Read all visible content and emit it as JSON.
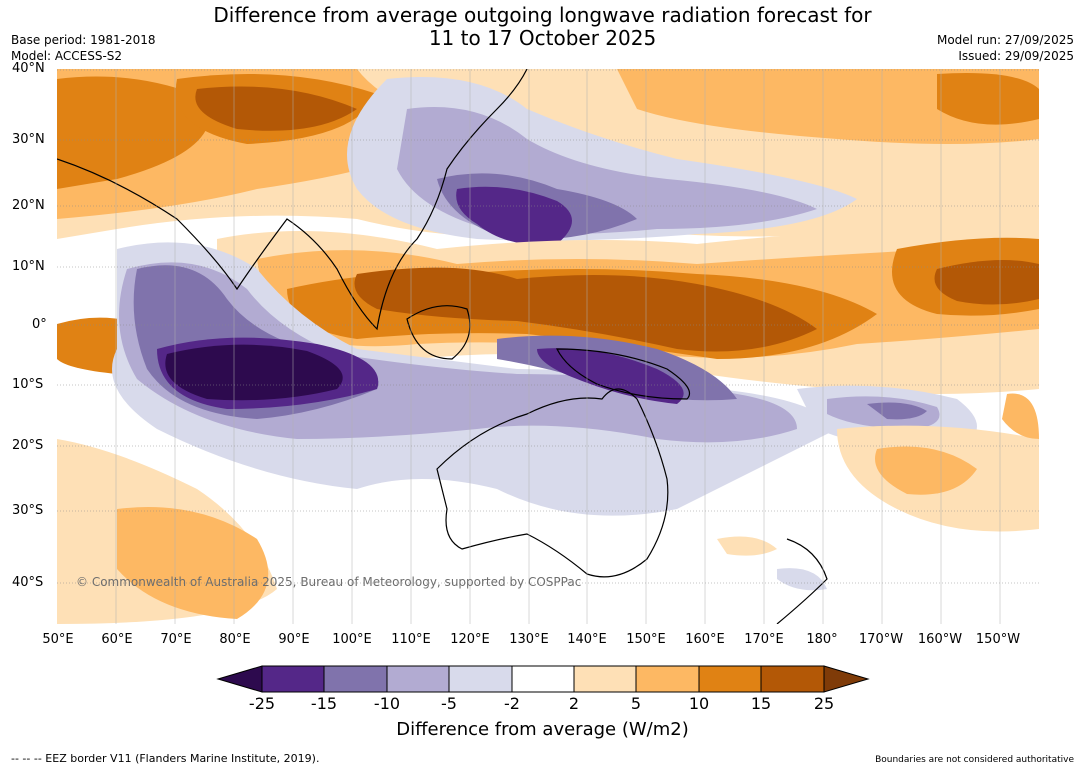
{
  "title_line1": "Difference from average outgoing longwave radiation forecast for",
  "title_line2": "11 to 17 October 2025",
  "base_period": "Base period: 1981-2018",
  "model": "Model: ACCESS-S2",
  "model_run": "Model run: 27/09/2025",
  "issued": "Issued: 29/09/2025",
  "lat_labels": [
    "40°N",
    "30°N",
    "20°N",
    "10°N",
    "0°",
    "10°S",
    "20°S",
    "30°S",
    "40°S"
  ],
  "lon_labels": [
    "50°E",
    "60°E",
    "70°E",
    "80°E",
    "90°E",
    "100°E",
    "110°E",
    "120°E",
    "130°E",
    "140°E",
    "150°E",
    "160°E",
    "170°E",
    "180°",
    "170°W",
    "160°W",
    "150°W"
  ],
  "watermark": "© Commonwealth of Australia 2025, Bureau of Meteorology, supported by COSPPac",
  "colorbar": {
    "ticks": [
      "-25",
      "-15",
      "-10",
      "-5",
      "-2",
      "2",
      "5",
      "10",
      "15",
      "25"
    ],
    "colors": {
      "lt_minus25": "#2d0a4e",
      "m25_m15": "#542788",
      "m15_m10": "#8073ac",
      "m10_m5": "#b2abd2",
      "m5_m2": "#d8daeb",
      "m2_p2": "#ffffff",
      "p2_p5": "#fee0b6",
      "p5_p10": "#fdb863",
      "p10_p15": "#e08214",
      "p15_p25": "#b35806",
      "gt_25": "#7f3b08"
    },
    "title": "Difference from average (W/m2)"
  },
  "footer_left": "--  --  -- EEZ border V11 (Flanders Marine Institute, 2019).",
  "footer_right": "Boundaries are not considered authoritative"
}
